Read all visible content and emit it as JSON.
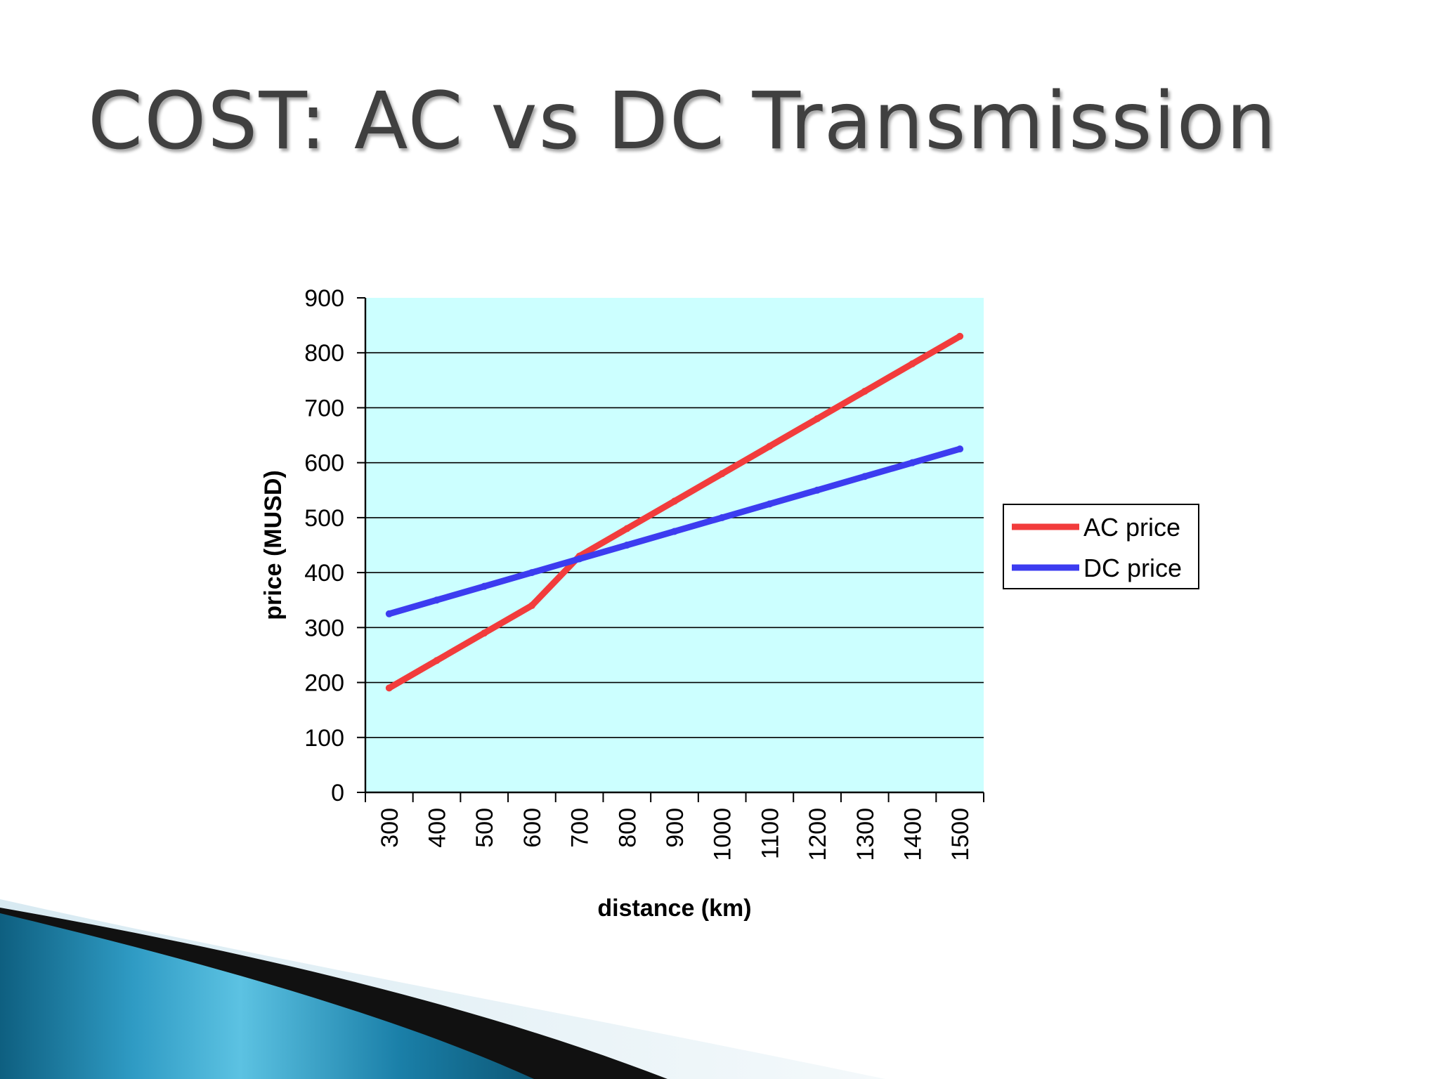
{
  "slide": {
    "title": "COST: AC vs DC Transmission"
  },
  "colors": {
    "plot_background": "#ccffff",
    "ac_series": "#f23c3c",
    "dc_series": "#3c3cf0",
    "gridline": "#000000"
  },
  "chart_data": {
    "type": "line",
    "title": "",
    "xlabel": "distance (km)",
    "ylabel": "price (MUSD)",
    "ylim": [
      0,
      900
    ],
    "y_ticks": [
      "0",
      "100",
      "200",
      "300",
      "400",
      "500",
      "600",
      "700",
      "800",
      "900"
    ],
    "categories": [
      "300",
      "400",
      "500",
      "600",
      "700",
      "800",
      "900",
      "1000",
      "1100",
      "1200",
      "1300",
      "1400",
      "1500"
    ],
    "grid": true,
    "legend_position": "right",
    "series": [
      {
        "name": "AC price",
        "color": "#f23c3c",
        "values": [
          190,
          240,
          290,
          340,
          430,
          480,
          530,
          580,
          630,
          680,
          730,
          780,
          830
        ]
      },
      {
        "name": "DC price",
        "color": "#3c3cf0",
        "values": [
          325,
          350,
          375,
          400,
          425,
          450,
          475,
          500,
          525,
          550,
          575,
          600,
          625
        ]
      }
    ]
  }
}
